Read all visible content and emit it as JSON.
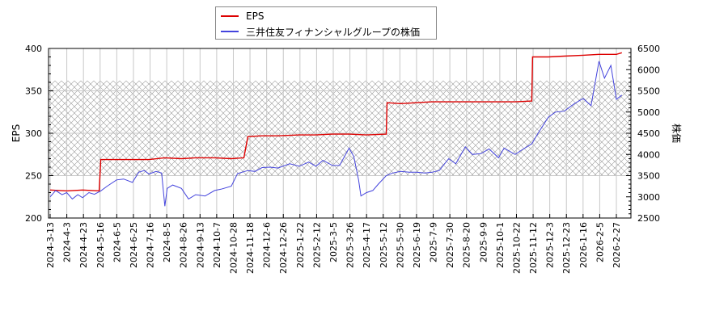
{
  "legend": {
    "items": [
      {
        "label": "EPS",
        "color": "#dd0000"
      },
      {
        "label": "三井住友フィナンシャルグループの株価",
        "color": "#4444dd"
      }
    ]
  },
  "chart_data": {
    "type": "line",
    "title": "",
    "xlabel": "",
    "ylabel": "EPS",
    "y2label": "株価",
    "ylim": [
      200,
      400
    ],
    "y2lim": [
      2500,
      6500
    ],
    "yticks": [
      200,
      250,
      300,
      350,
      400
    ],
    "y2ticks": [
      2500,
      3000,
      3500,
      4000,
      4500,
      5000,
      5500,
      6000,
      6500
    ],
    "grid": true,
    "legend_position": "top",
    "shaded_band": {
      "axis": "left",
      "from": 250,
      "to": 362,
      "pattern": "crosshatch"
    },
    "x_ticks": [
      "2024-3-13",
      "2024-4-3",
      "2024-4-23",
      "2024-5-16",
      "2024-6-5",
      "2024-6-25",
      "2024-7-16",
      "2024-8-5",
      "2024-8-26",
      "2024-9-13",
      "2024-10-7",
      "2024-10-28",
      "2024-11-18",
      "2024-12-6",
      "2024-12-26",
      "2025-1-22",
      "2025-2-12",
      "2025-3-5",
      "2025-3-26",
      "2025-4-17",
      "2025-5-12",
      "2025-5-30",
      "2025-6-19",
      "2025-7-9",
      "2025-7-30",
      "2025-8-20",
      "2025-9-9",
      "2025-10-1",
      "2025-10-22",
      "2025-11-12",
      "2025-12-3",
      "2025-12-23",
      "2026-1-16",
      "2026-2-5",
      "2026-2-27"
    ],
    "series": [
      {
        "name": "EPS",
        "axis": "left",
        "color": "#dd0000",
        "x": [
          "2024-3-13",
          "2024-4-3",
          "2024-4-23",
          "2024-5-14",
          "2024-5-16",
          "2024-6-5",
          "2024-6-25",
          "2024-7-16",
          "2024-8-5",
          "2024-8-26",
          "2024-9-13",
          "2024-10-7",
          "2024-10-28",
          "2024-11-13",
          "2024-11-18",
          "2024-12-6",
          "2024-12-26",
          "2025-1-22",
          "2025-2-12",
          "2025-3-5",
          "2025-3-26",
          "2025-4-17",
          "2025-5-12",
          "2025-5-13",
          "2025-5-30",
          "2025-6-19",
          "2025-7-9",
          "2025-7-30",
          "2025-8-20",
          "2025-9-9",
          "2025-10-1",
          "2025-10-22",
          "2025-11-12",
          "2025-11-13",
          "2025-12-3",
          "2025-12-23",
          "2026-1-16",
          "2026-2-5",
          "2026-2-27",
          "2026-3-6"
        ],
        "values": [
          233,
          232,
          233,
          232,
          269,
          269,
          269,
          269,
          271,
          270,
          271,
          271,
          270,
          271,
          296,
          297,
          297,
          298,
          298,
          299,
          299,
          298,
          299,
          336,
          335,
          336,
          337,
          337,
          337,
          337,
          337,
          337,
          338,
          390,
          390,
          391,
          392,
          393,
          393,
          395
        ]
      },
      {
        "name": "三井住友フィナンシャルグループの株価",
        "axis": "right",
        "color": "#4444dd",
        "x": [
          "2024-3-13",
          "2024-3-20",
          "2024-3-28",
          "2024-4-3",
          "2024-4-10",
          "2024-4-17",
          "2024-4-23",
          "2024-5-1",
          "2024-5-8",
          "2024-5-16",
          "2024-5-24",
          "2024-6-5",
          "2024-6-14",
          "2024-6-25",
          "2024-7-3",
          "2024-7-10",
          "2024-7-16",
          "2024-7-25",
          "2024-8-1",
          "2024-8-5",
          "2024-8-8",
          "2024-8-15",
          "2024-8-26",
          "2024-9-4",
          "2024-9-13",
          "2024-9-25",
          "2024-10-7",
          "2024-10-15",
          "2024-10-28",
          "2024-11-5",
          "2024-11-18",
          "2024-11-27",
          "2024-12-6",
          "2024-12-16",
          "2024-12-26",
          "2025-1-10",
          "2025-1-22",
          "2025-2-3",
          "2025-2-12",
          "2025-2-21",
          "2025-3-5",
          "2025-3-14",
          "2025-3-26",
          "2025-4-1",
          "2025-4-7",
          "2025-4-10",
          "2025-4-17",
          "2025-4-25",
          "2025-5-2",
          "2025-5-12",
          "2025-5-20",
          "2025-5-30",
          "2025-6-10",
          "2025-6-19",
          "2025-6-30",
          "2025-7-9",
          "2025-7-18",
          "2025-7-30",
          "2025-8-8",
          "2025-8-20",
          "2025-8-29",
          "2025-9-9",
          "2025-9-19",
          "2025-10-1",
          "2025-10-8",
          "2025-10-22",
          "2025-10-30",
          "2025-11-12",
          "2025-11-20",
          "2025-12-3",
          "2025-12-12",
          "2025-12-23",
          "2026-1-5",
          "2026-1-16",
          "2026-1-26",
          "2026-2-5",
          "2026-2-12",
          "2026-2-20",
          "2026-2-27",
          "2026-3-6"
        ],
        "values": [
          3000,
          3150,
          3050,
          3100,
          2950,
          3050,
          2980,
          3100,
          3060,
          3140,
          3250,
          3400,
          3420,
          3340,
          3580,
          3620,
          3540,
          3600,
          3560,
          2780,
          3200,
          3280,
          3200,
          2950,
          3050,
          3020,
          3150,
          3180,
          3250,
          3550,
          3620,
          3600,
          3690,
          3700,
          3680,
          3780,
          3720,
          3820,
          3720,
          3860,
          3740,
          3740,
          4150,
          3950,
          3400,
          3020,
          3100,
          3150,
          3300,
          3500,
          3560,
          3600,
          3580,
          3580,
          3560,
          3580,
          3620,
          3900,
          3780,
          4180,
          4000,
          4020,
          4130,
          3920,
          4150,
          4000,
          4100,
          4250,
          4500,
          4880,
          5000,
          5020,
          5200,
          5320,
          5150,
          6200,
          5800,
          6100,
          5300,
          5400
        ]
      }
    ]
  }
}
